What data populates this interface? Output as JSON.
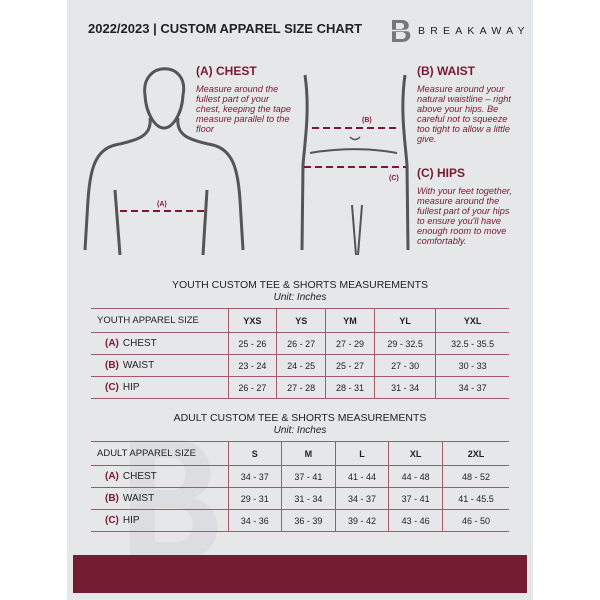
{
  "header": {
    "title": "2022/2023  |  CUSTOM APPAREL SIZE CHART",
    "brand": "BREAKAWAY",
    "logo_letter": "B"
  },
  "guide": {
    "chest": {
      "title": "(A) CHEST",
      "text": "Measure around the fullest part of your chest, keeping the tape measure parallel to the floor",
      "marker": "(A)"
    },
    "waist": {
      "title": "(B) WAIST",
      "text": "Measure around your natural waistline – right above your hips. Be careful not to squeeze too tight to allow a little give.",
      "marker": "(B)"
    },
    "hips": {
      "title": "(C) HIPS",
      "text": "With your feet together, measure around the fullest part of your hips to ensure you'll have enough room to move comfortably.",
      "marker": "(C)"
    }
  },
  "youth": {
    "title": "YOUTH CUSTOM TEE & SHORTS MEASUREMENTS",
    "unit": "Unit: Inches",
    "header": [
      "YOUTH APPAREL SIZE",
      "YXS",
      "YS",
      "YM",
      "YL",
      "YXL"
    ],
    "rows": [
      {
        "code": "(A)",
        "name": "CHEST",
        "values": [
          "25 - 26",
          "26 - 27",
          "27 - 29",
          "29 - 32.5",
          "32.5 - 35.5"
        ]
      },
      {
        "code": "(B)",
        "name": "WAIST",
        "values": [
          "23 - 24",
          "24 - 25",
          "25 - 27",
          "27 - 30",
          "30 - 33"
        ]
      },
      {
        "code": "(C)",
        "name": "HIP",
        "values": [
          "26 - 27",
          "27 - 28",
          "28 - 31",
          "31 - 34",
          "34 - 37"
        ]
      }
    ]
  },
  "adult": {
    "title": "ADULT CUSTOM TEE & SHORTS MEASUREMENTS",
    "unit": "Unit: Inches",
    "header": [
      "ADULT APPAREL SIZE",
      "S",
      "M",
      "L",
      "XL",
      "2XL"
    ],
    "rows": [
      {
        "code": "(A)",
        "name": "CHEST",
        "values": [
          "34 - 37",
          "37 - 41",
          "41 - 44",
          "44 - 48",
          "48 - 52"
        ]
      },
      {
        "code": "(B)",
        "name": "WAIST",
        "values": [
          "29 - 31",
          "31 - 34",
          "34 - 37",
          "37 - 41",
          "41 - 45.5"
        ]
      },
      {
        "code": "(C)",
        "name": "HIP",
        "values": [
          "34 - 36",
          "36 - 39",
          "39 - 42",
          "43 - 46",
          "46 - 50"
        ]
      }
    ]
  },
  "colors": {
    "accent": "#741c32",
    "background": "#e6e7e9"
  }
}
